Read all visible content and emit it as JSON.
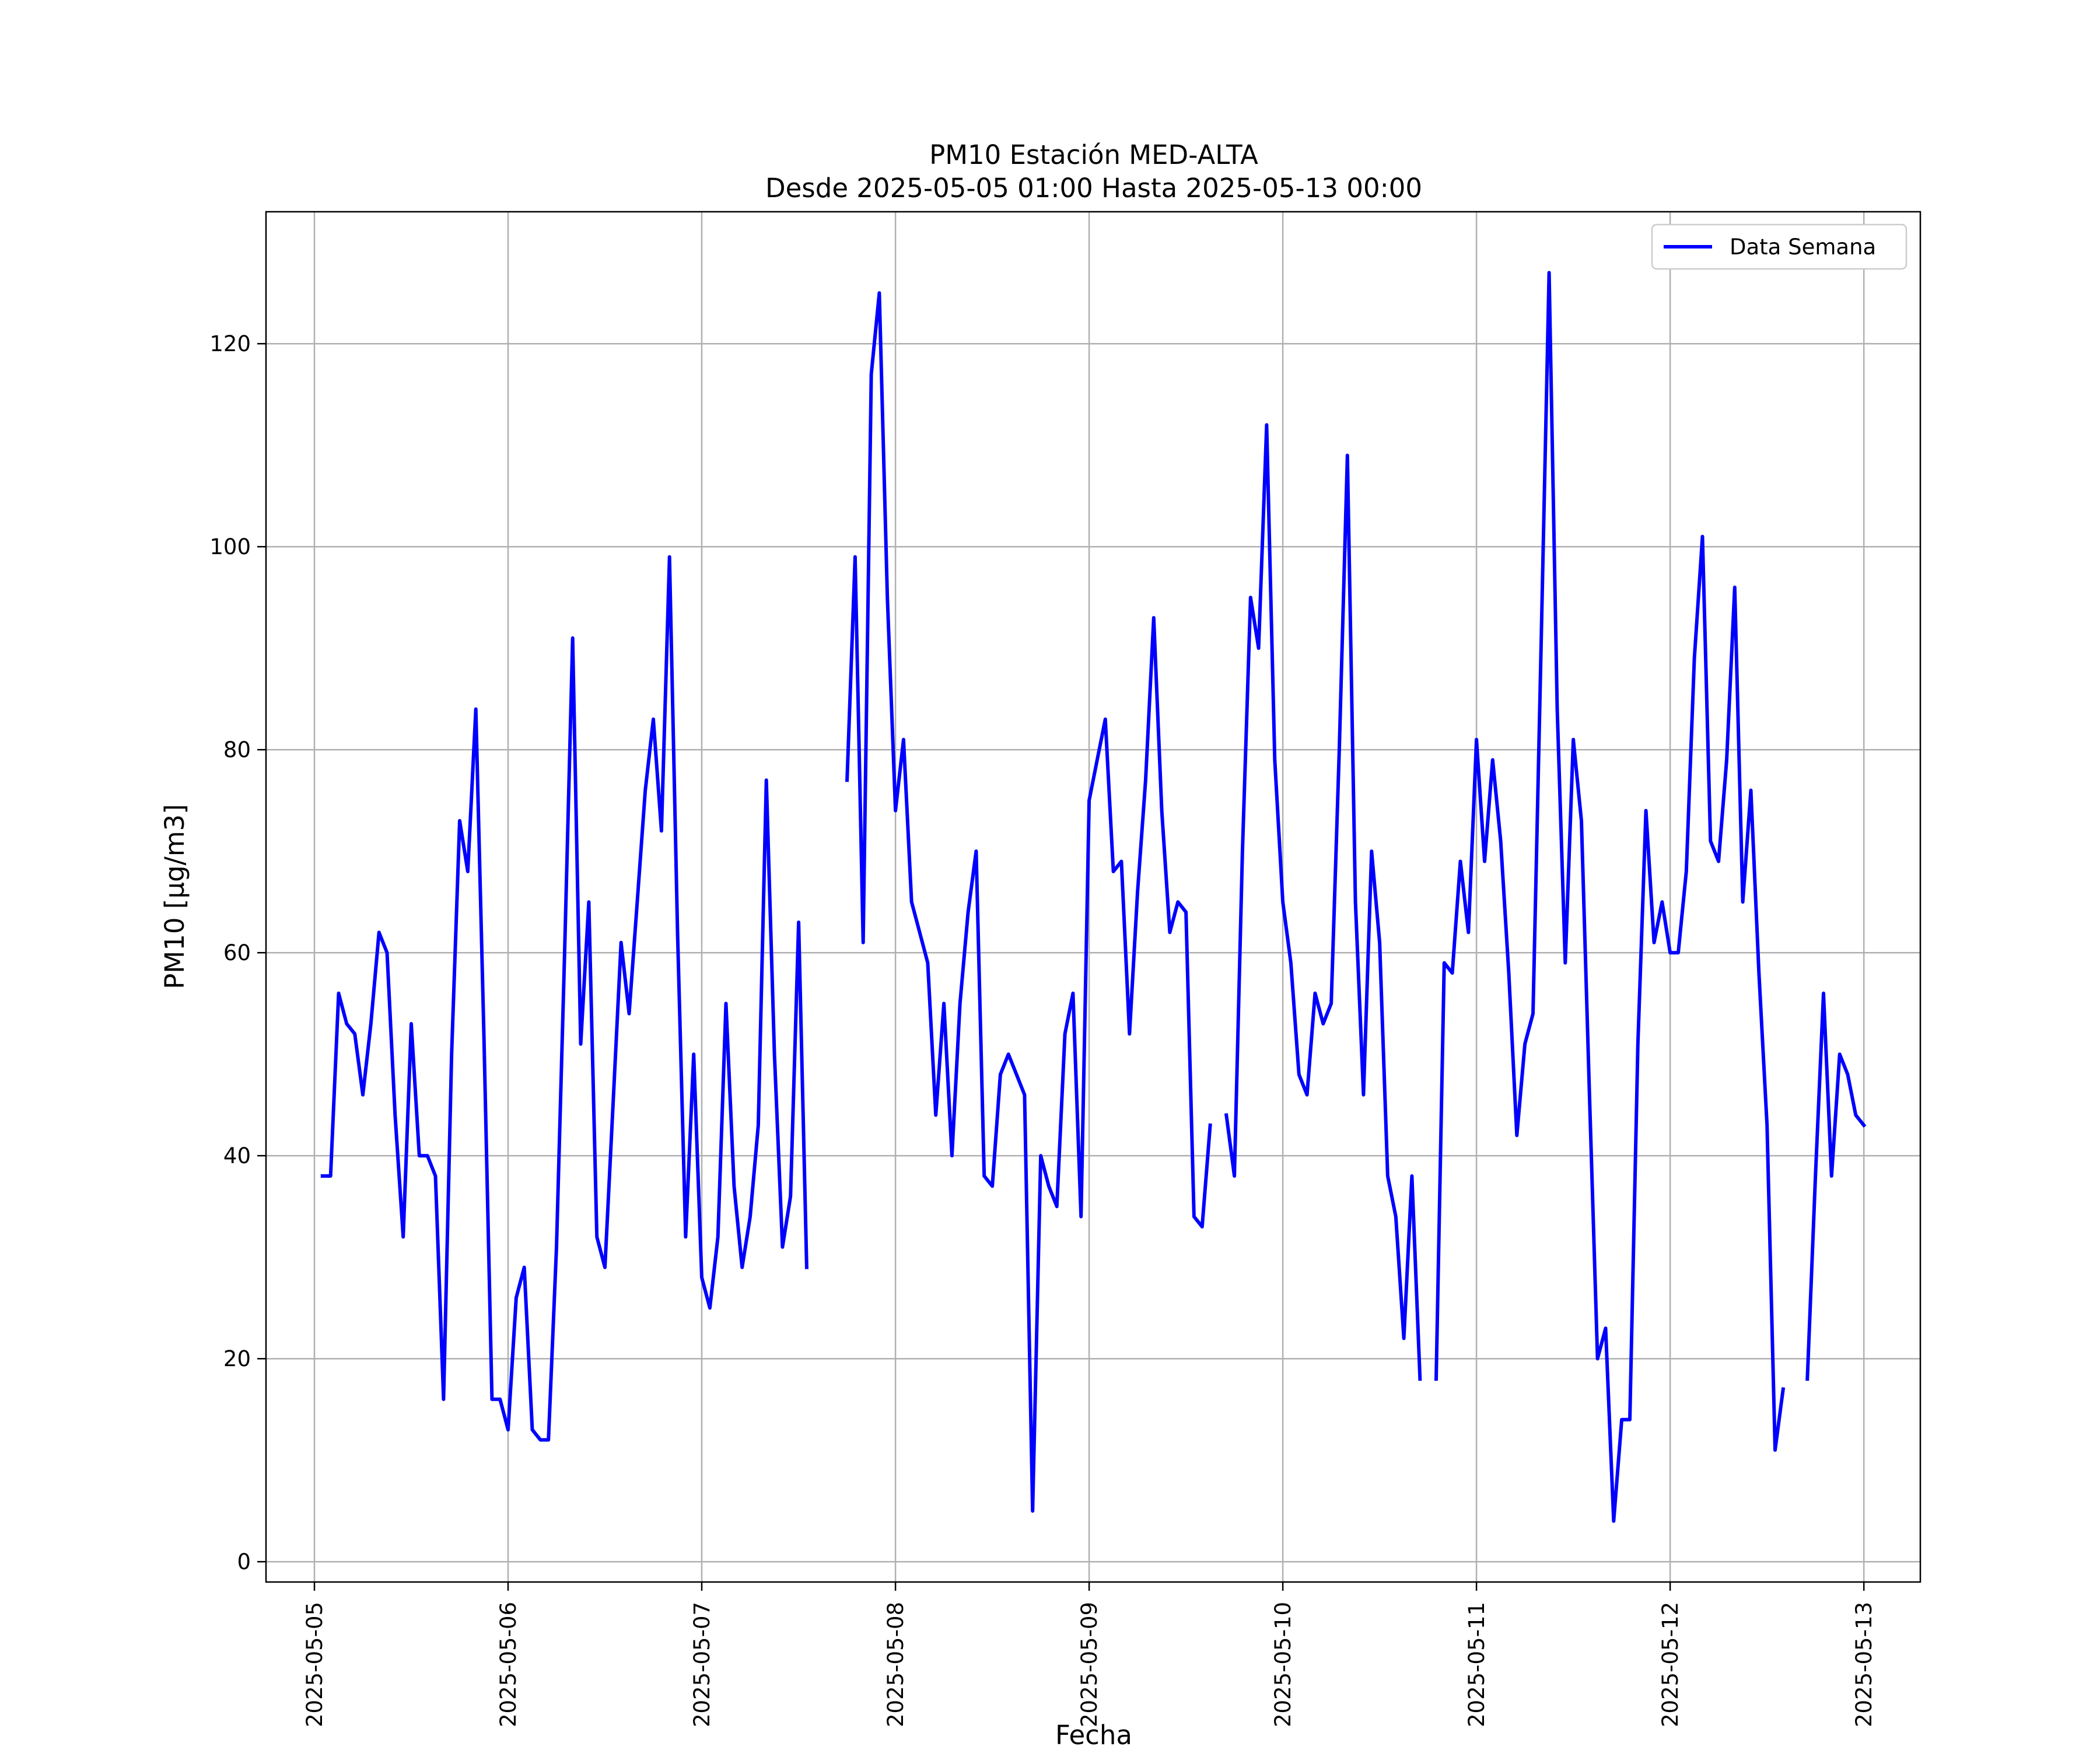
{
  "chart_data": {
    "type": "line",
    "title": "PM10 Estación MED-ALTA",
    "subtitle": "Desde 2025-05-05 01:00 Hasta 2025-05-13 00:00",
    "xlabel": "Fecha",
    "ylabel": "PM10 [μg/m3]",
    "xlim": [
      "2025-05-04 18:00",
      "2025-05-13 07:00"
    ],
    "ylim": [
      -2,
      133
    ],
    "grid": true,
    "legend_position": "top-right",
    "x_ticks": [
      "2025-05-05",
      "2025-05-06",
      "2025-05-07",
      "2025-05-08",
      "2025-05-09",
      "2025-05-10",
      "2025-05-11",
      "2025-05-12",
      "2025-05-13"
    ],
    "y_ticks": [
      0,
      20,
      40,
      60,
      80,
      100,
      120
    ],
    "line_color": "#0000ff",
    "series": [
      {
        "name": "Data Semana",
        "x": [
          "2025-05-05 01:00",
          "2025-05-05 02:00",
          "2025-05-05 03:00",
          "2025-05-05 04:00",
          "2025-05-05 05:00",
          "2025-05-05 06:00",
          "2025-05-05 07:00",
          "2025-05-05 08:00",
          "2025-05-05 09:00",
          "2025-05-05 10:00",
          "2025-05-05 11:00",
          "2025-05-05 12:00",
          "2025-05-05 13:00",
          "2025-05-05 14:00",
          "2025-05-05 15:00",
          "2025-05-05 16:00",
          "2025-05-05 17:00",
          "2025-05-05 18:00",
          "2025-05-05 19:00",
          "2025-05-05 20:00",
          "2025-05-05 21:00",
          "2025-05-05 22:00",
          "2025-05-05 23:00",
          "2025-05-06 00:00",
          "2025-05-06 01:00",
          "2025-05-06 02:00",
          "2025-05-06 03:00",
          "2025-05-06 04:00",
          "2025-05-06 05:00",
          "2025-05-06 06:00",
          "2025-05-06 07:00",
          "2025-05-06 08:00",
          "2025-05-06 09:00",
          "2025-05-06 10:00",
          "2025-05-06 11:00",
          "2025-05-06 12:00",
          "2025-05-06 13:00",
          "2025-05-06 14:00",
          "2025-05-06 15:00",
          "2025-05-06 16:00",
          "2025-05-06 17:00",
          "2025-05-06 18:00",
          "2025-05-06 19:00",
          "2025-05-06 20:00",
          "2025-05-06 21:00",
          "2025-05-06 22:00",
          "2025-05-06 23:00",
          "2025-05-07 00:00",
          "2025-05-07 01:00",
          "2025-05-07 02:00",
          "2025-05-07 03:00",
          "2025-05-07 04:00",
          "2025-05-07 05:00",
          "2025-05-07 06:00",
          "2025-05-07 07:00",
          "2025-05-07 08:00",
          "2025-05-07 09:00",
          "2025-05-07 10:00",
          "2025-05-07 11:00",
          "2025-05-07 12:00",
          "2025-05-07 13:00",
          "2025-05-07 14:00",
          "2025-05-07 15:00",
          "2025-05-07 16:00",
          "2025-05-07 17:00",
          "2025-05-07 18:00",
          "2025-05-07 19:00",
          "2025-05-07 20:00",
          "2025-05-07 21:00",
          "2025-05-07 22:00",
          "2025-05-07 23:00",
          "2025-05-08 00:00",
          "2025-05-08 01:00",
          "2025-05-08 02:00",
          "2025-05-08 03:00",
          "2025-05-08 04:00",
          "2025-05-08 05:00",
          "2025-05-08 06:00",
          "2025-05-08 07:00",
          "2025-05-08 08:00",
          "2025-05-08 09:00",
          "2025-05-08 10:00",
          "2025-05-08 11:00",
          "2025-05-08 12:00",
          "2025-05-08 13:00",
          "2025-05-08 14:00",
          "2025-05-08 15:00",
          "2025-05-08 16:00",
          "2025-05-08 17:00",
          "2025-05-08 18:00",
          "2025-05-08 19:00",
          "2025-05-08 20:00",
          "2025-05-08 21:00",
          "2025-05-08 22:00",
          "2025-05-08 23:00",
          "2025-05-09 00:00",
          "2025-05-09 01:00",
          "2025-05-09 02:00",
          "2025-05-09 03:00",
          "2025-05-09 04:00",
          "2025-05-09 05:00",
          "2025-05-09 06:00",
          "2025-05-09 07:00",
          "2025-05-09 08:00",
          "2025-05-09 09:00",
          "2025-05-09 10:00",
          "2025-05-09 11:00",
          "2025-05-09 12:00",
          "2025-05-09 13:00",
          "2025-05-09 14:00",
          "2025-05-09 15:00",
          "2025-05-09 16:00",
          "2025-05-09 17:00",
          "2025-05-09 18:00",
          "2025-05-09 19:00",
          "2025-05-09 20:00",
          "2025-05-09 21:00",
          "2025-05-09 22:00",
          "2025-05-09 23:00",
          "2025-05-10 00:00",
          "2025-05-10 01:00",
          "2025-05-10 02:00",
          "2025-05-10 03:00",
          "2025-05-10 04:00",
          "2025-05-10 05:00",
          "2025-05-10 06:00",
          "2025-05-10 07:00",
          "2025-05-10 08:00",
          "2025-05-10 09:00",
          "2025-05-10 10:00",
          "2025-05-10 11:00",
          "2025-05-10 12:00",
          "2025-05-10 13:00",
          "2025-05-10 14:00",
          "2025-05-10 15:00",
          "2025-05-10 16:00",
          "2025-05-10 17:00",
          "2025-05-10 18:00",
          "2025-05-10 19:00",
          "2025-05-10 20:00",
          "2025-05-10 21:00",
          "2025-05-10 22:00",
          "2025-05-10 23:00",
          "2025-05-11 00:00",
          "2025-05-11 01:00",
          "2025-05-11 02:00",
          "2025-05-11 03:00",
          "2025-05-11 04:00",
          "2025-05-11 05:00",
          "2025-05-11 06:00",
          "2025-05-11 07:00",
          "2025-05-11 08:00",
          "2025-05-11 09:00",
          "2025-05-11 10:00",
          "2025-05-11 11:00",
          "2025-05-11 12:00",
          "2025-05-11 13:00",
          "2025-05-11 14:00",
          "2025-05-11 15:00",
          "2025-05-11 16:00",
          "2025-05-11 17:00",
          "2025-05-11 18:00",
          "2025-05-11 19:00",
          "2025-05-11 20:00",
          "2025-05-11 21:00",
          "2025-05-11 22:00",
          "2025-05-11 23:00",
          "2025-05-12 00:00",
          "2025-05-12 01:00",
          "2025-05-12 02:00",
          "2025-05-12 03:00",
          "2025-05-12 04:00",
          "2025-05-12 05:00",
          "2025-05-12 06:00",
          "2025-05-12 07:00",
          "2025-05-12 08:00",
          "2025-05-12 09:00",
          "2025-05-12 10:00",
          "2025-05-12 11:00",
          "2025-05-12 12:00",
          "2025-05-12 13:00",
          "2025-05-12 14:00",
          "2025-05-12 15:00",
          "2025-05-12 16:00",
          "2025-05-12 17:00",
          "2025-05-12 18:00",
          "2025-05-12 19:00",
          "2025-05-12 20:00",
          "2025-05-12 21:00",
          "2025-05-12 22:00",
          "2025-05-12 23:00",
          "2025-05-13 00:00"
        ],
        "values": [
          38,
          38,
          56,
          53,
          52,
          46,
          53,
          62,
          60,
          44,
          32,
          53,
          40,
          40,
          38,
          16,
          50,
          73,
          68,
          84,
          52,
          16,
          16,
          13,
          26,
          29,
          13,
          12,
          12,
          31,
          60,
          91,
          51,
          65,
          32,
          29,
          45,
          61,
          54,
          65,
          76,
          83,
          72,
          99,
          62,
          32,
          50,
          28,
          25,
          32,
          55,
          37,
          29,
          34,
          43,
          77,
          50,
          31,
          36,
          63,
          29,
          null,
          null,
          null,
          null,
          77,
          99,
          61,
          117,
          125,
          95,
          74,
          81,
          65,
          62,
          59,
          44,
          55,
          40,
          55,
          64,
          70,
          38,
          37,
          48,
          50,
          48,
          46,
          5,
          40,
          37,
          35,
          52,
          56,
          34,
          75,
          79,
          83,
          68,
          69,
          52,
          66,
          77,
          93,
          74,
          62,
          65,
          64,
          34,
          33,
          43,
          null,
          44,
          38,
          70,
          95,
          90,
          112,
          79,
          65,
          59,
          48,
          46,
          56,
          53,
          55,
          80,
          109,
          65,
          46,
          70,
          61,
          38,
          34,
          22,
          38,
          18,
          null,
          18,
          59,
          58,
          69,
          62,
          81,
          69,
          79,
          71,
          58,
          42,
          51,
          54,
          90,
          127,
          84,
          59,
          81,
          73,
          46,
          20,
          23,
          4,
          14,
          14,
          51,
          74,
          61,
          65,
          60,
          60,
          68,
          89,
          101,
          71,
          69,
          79,
          96,
          65,
          76,
          58,
          43,
          11,
          17,
          null,
          null,
          18,
          38,
          56,
          38,
          50,
          48,
          44,
          43
        ]
      }
    ]
  }
}
